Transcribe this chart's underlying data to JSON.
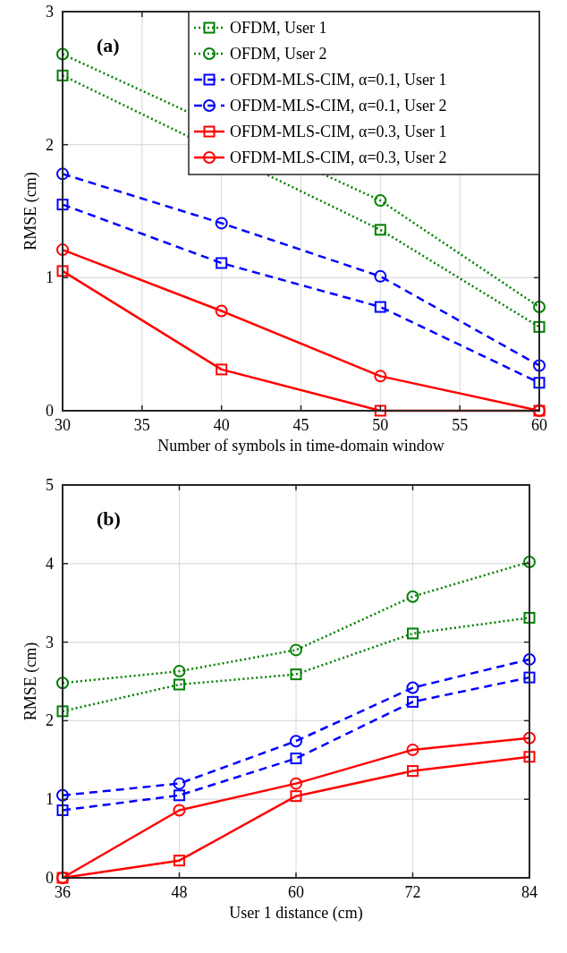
{
  "chart_data": [
    {
      "type": "line",
      "xlabel": "Number of symbols in time-domain window",
      "ylabel": "RMSE (cm)",
      "x": [
        30,
        40,
        50,
        60
      ],
      "xlim": [
        30,
        60
      ],
      "xticks": [
        30,
        35,
        40,
        45,
        50,
        55,
        60
      ],
      "ylim": [
        0,
        3
      ],
      "yticks": [
        0,
        1,
        2,
        3
      ],
      "grid": true,
      "legend": "top right",
      "annotations": [
        "(a)"
      ],
      "series": [
        {
          "name": "OFDM, User 1",
          "color": "#008000",
          "marker": "square",
          "line_style": "dotted",
          "values": [
            2.52,
            null,
            1.36,
            0.63
          ]
        },
        {
          "name": "OFDM, User 2",
          "color": "#008000",
          "marker": "circle",
          "line_style": "dotted",
          "values": [
            2.68,
            null,
            1.58,
            0.78
          ]
        },
        {
          "name": "OFDM-MLS-CIM, α=0.1, User 1",
          "color": "#0000ff",
          "marker": "square",
          "line_style": "dashed",
          "values": [
            1.55,
            1.11,
            0.78,
            0.21
          ]
        },
        {
          "name": "OFDM-MLS-CIM, α=0.1, User 2",
          "color": "#0000ff",
          "marker": "circle",
          "line_style": "dashed",
          "values": [
            1.78,
            1.41,
            1.01,
            0.34
          ]
        },
        {
          "name": "OFDM-MLS-CIM, α=0.3, User 1",
          "color": "#ff0000",
          "marker": "square",
          "line_style": "solid",
          "values": [
            1.05,
            0.31,
            0,
            0
          ]
        },
        {
          "name": "OFDM-MLS-CIM, α=0.3, User 2",
          "color": "#ff0000",
          "marker": "circle",
          "line_style": "solid",
          "values": [
            1.21,
            0.75,
            0.26,
            0
          ]
        }
      ]
    },
    {
      "type": "line",
      "xlabel": "User 1 distance (cm)",
      "ylabel": "RMSE (cm)",
      "x": [
        36,
        48,
        60,
        72,
        84
      ],
      "xlim": [
        36,
        84
      ],
      "xticks": [
        36,
        48,
        60,
        72,
        84
      ],
      "ylim": [
        0,
        5
      ],
      "yticks": [
        0,
        1,
        2,
        3,
        4,
        5
      ],
      "grid": true,
      "annotations": [
        "(b)"
      ],
      "series": [
        {
          "color": "#008000",
          "marker": "square",
          "line_style": "dotted",
          "values": [
            2.12,
            2.46,
            2.59,
            3.11,
            3.31
          ]
        },
        {
          "color": "#008000",
          "marker": "circle",
          "line_style": "dotted",
          "values": [
            2.48,
            2.63,
            2.9,
            3.58,
            4.02
          ]
        },
        {
          "color": "#0000ff",
          "marker": "square",
          "line_style": "dashed",
          "values": [
            0.86,
            1.05,
            1.52,
            2.24,
            2.55
          ]
        },
        {
          "color": "#0000ff",
          "marker": "circle",
          "line_style": "dashed",
          "values": [
            1.05,
            1.2,
            1.74,
            2.42,
            2.78
          ]
        },
        {
          "color": "#ff0000",
          "marker": "square",
          "line_style": "solid",
          "values": [
            0,
            0.22,
            1.04,
            1.36,
            1.54
          ]
        },
        {
          "color": "#ff0000",
          "marker": "circle",
          "line_style": "solid",
          "values": [
            0,
            0.86,
            1.2,
            1.63,
            1.78
          ]
        }
      ]
    }
  ]
}
